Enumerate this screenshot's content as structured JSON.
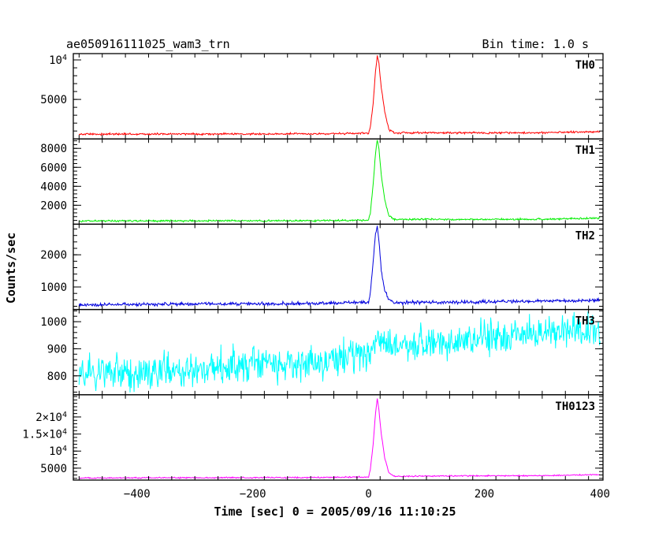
{
  "header": {
    "title": "ae050916111025_wam3_trn",
    "bin_time": "Bin time: 1.0 s"
  },
  "colors": {
    "TH0": "#ff0000",
    "TH1": "#00ee00",
    "TH2": "#0000dd",
    "TH3": "#00ffff",
    "TH0123": "#ff00ff"
  },
  "chart_data": {
    "type": "line",
    "xlabel": "Time [sec] 0 = 2005/09/16 11:10:25",
    "ylabel": "Counts/sec",
    "xlim": [
      -510,
      405
    ],
    "x_ticks": [
      -400,
      -200,
      0,
      200,
      400
    ],
    "x_tick_labels": [
      "−400",
      "−200",
      "0",
      "200",
      "400"
    ],
    "panels": [
      {
        "name": "TH0",
        "ylim": [
          0,
          10800
        ],
        "y_ticks": [
          5000,
          10000
        ],
        "y_tick_labels": [
          "5000",
          "10^4"
        ],
        "points": [
          [
            -500,
            600
          ],
          [
            -300,
            620
          ],
          [
            -100,
            640
          ],
          [
            0,
            700
          ],
          [
            3,
            1500
          ],
          [
            8,
            4500
          ],
          [
            12,
            8500
          ],
          [
            15,
            10500
          ],
          [
            18,
            9500
          ],
          [
            22,
            6500
          ],
          [
            28,
            3500
          ],
          [
            35,
            1200
          ],
          [
            45,
            750
          ],
          [
            100,
            780
          ],
          [
            200,
            760
          ],
          [
            300,
            790
          ],
          [
            400,
            900
          ]
        ],
        "noise": 60
      },
      {
        "name": "TH1",
        "ylim": [
          0,
          9000
        ],
        "y_ticks": [
          2000,
          4000,
          6000,
          8000
        ],
        "y_tick_labels": [
          "2000",
          "4000",
          "6000",
          "8000"
        ],
        "points": [
          [
            -500,
            350
          ],
          [
            -300,
            360
          ],
          [
            -100,
            370
          ],
          [
            0,
            420
          ],
          [
            3,
            1200
          ],
          [
            8,
            4200
          ],
          [
            12,
            7500
          ],
          [
            15,
            8900
          ],
          [
            18,
            8000
          ],
          [
            22,
            5200
          ],
          [
            28,
            2600
          ],
          [
            35,
            900
          ],
          [
            45,
            480
          ],
          [
            100,
            520
          ],
          [
            200,
            500
          ],
          [
            300,
            520
          ],
          [
            400,
            650
          ]
        ],
        "noise": 45
      },
      {
        "name": "TH2",
        "ylim": [
          300,
          2950
        ],
        "y_ticks": [
          1000,
          2000
        ],
        "y_tick_labels": [
          "1000",
          "2000"
        ],
        "points": [
          [
            -500,
            440
          ],
          [
            -300,
            470
          ],
          [
            -100,
            490
          ],
          [
            0,
            520
          ],
          [
            3,
            800
          ],
          [
            8,
            1800
          ],
          [
            12,
            2650
          ],
          [
            15,
            2900
          ],
          [
            18,
            2450
          ],
          [
            22,
            1500
          ],
          [
            28,
            900
          ],
          [
            35,
            600
          ],
          [
            45,
            500
          ],
          [
            100,
            530
          ],
          [
            200,
            540
          ],
          [
            300,
            560
          ],
          [
            400,
            580
          ]
        ],
        "noise": 25
      },
      {
        "name": "TH3",
        "ylim": [
          730,
          1045
        ],
        "y_ticks": [
          800,
          900,
          1000
        ],
        "y_tick_labels": [
          "800",
          "900",
          "1000"
        ],
        "points": [
          [
            -500,
            805
          ],
          [
            -300,
            825
          ],
          [
            -100,
            850
          ],
          [
            0,
            880
          ],
          [
            15,
            925
          ],
          [
            100,
            915
          ],
          [
            200,
            935
          ],
          [
            300,
            960
          ],
          [
            400,
            975
          ]
        ],
        "noise": 32
      },
      {
        "name": "TH0123",
        "ylim": [
          1500,
          26500
        ],
        "y_ticks": [
          5000,
          10000,
          15000,
          20000
        ],
        "y_tick_labels": [
          "5000",
          "10^4",
          "1.5×10^4",
          "2×10^4"
        ],
        "points": [
          [
            -500,
            2100
          ],
          [
            -300,
            2200
          ],
          [
            -100,
            2250
          ],
          [
            0,
            2400
          ],
          [
            3,
            4500
          ],
          [
            8,
            12000
          ],
          [
            12,
            21000
          ],
          [
            15,
            25500
          ],
          [
            18,
            22000
          ],
          [
            22,
            15000
          ],
          [
            28,
            8000
          ],
          [
            35,
            3600
          ],
          [
            45,
            2600
          ],
          [
            100,
            2700
          ],
          [
            200,
            2750
          ],
          [
            300,
            2800
          ],
          [
            400,
            3100
          ]
        ],
        "noise": 90
      }
    ]
  }
}
